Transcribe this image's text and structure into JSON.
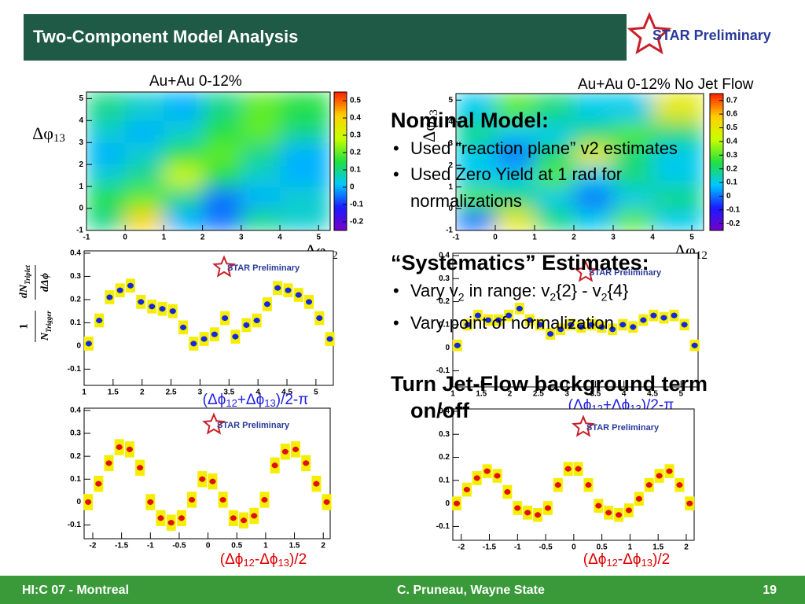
{
  "header": {
    "title": "Two-Component Model Analysis",
    "logo": "STAR Preliminary"
  },
  "chart_data": [
    {
      "type": "heatmap",
      "title": "Au+Au 0-12%",
      "xlabel": [
        "Δφ",
        "12"
      ],
      "ylabel": [
        "Δφ",
        "13"
      ],
      "xlim": [
        -1,
        5.3
      ],
      "ylim": [
        -1,
        5.3
      ],
      "xticks": [
        -1,
        0,
        1,
        2,
        3,
        4,
        5
      ],
      "yticks": [
        -1,
        0,
        1,
        2,
        3,
        4,
        5
      ],
      "xbins": [
        -1,
        0,
        1,
        2,
        3,
        4,
        5.3
      ],
      "ybins": [
        -1,
        0,
        1,
        2,
        3,
        4,
        5.3
      ],
      "z": [
        [
          0.1,
          0.4,
          0.0,
          -0.05,
          0.1,
          0.05
        ],
        [
          0.15,
          0.2,
          0.1,
          -0.05,
          0.0,
          0.05
        ],
        [
          0.05,
          0.1,
          0.3,
          0.15,
          0.05,
          0.0
        ],
        [
          0.0,
          0.05,
          0.15,
          0.2,
          0.1,
          0.0
        ],
        [
          0.05,
          0.0,
          0.05,
          0.15,
          0.2,
          0.1
        ],
        [
          0.1,
          0.05,
          0.0,
          0.1,
          0.2,
          0.15
        ]
      ],
      "zlim": [
        -0.25,
        0.55
      ],
      "zticks": [
        -0.2,
        -0.1,
        0,
        0.1,
        0.2,
        0.3,
        0.4,
        0.5
      ],
      "colormap": [
        "#7a00c8",
        "#1a1aff",
        "#00c8ff",
        "#20e040",
        "#c8ff00",
        "#ffd000",
        "#ff2000"
      ]
    },
    {
      "type": "heatmap",
      "title": "Au+Au 0-12% No Jet Flow",
      "xlabel": [
        "Δφ",
        "12"
      ],
      "ylabel": [
        "Δφ",
        "13"
      ],
      "xlim": [
        -1,
        5.3
      ],
      "ylim": [
        -1,
        5.3
      ],
      "xticks": [
        -1,
        0,
        1,
        2,
        3,
        4,
        5
      ],
      "yticks": [
        -1,
        0,
        1,
        2,
        3,
        4,
        5
      ],
      "xbins": [
        -1,
        0,
        1,
        2,
        3,
        4,
        5.3
      ],
      "ybins": [
        -1,
        0,
        1,
        2,
        3,
        4,
        5.3
      ],
      "z": [
        [
          0.0,
          0.5,
          0.2,
          0.1,
          0.3,
          0.1
        ],
        [
          0.3,
          0.2,
          0.1,
          0.0,
          0.1,
          0.2
        ],
        [
          0.1,
          0.1,
          0.3,
          0.1,
          0.2,
          0.1
        ],
        [
          0.1,
          0.0,
          0.2,
          0.5,
          0.2,
          0.1
        ],
        [
          0.2,
          0.1,
          0.1,
          0.2,
          0.3,
          0.2
        ],
        [
          0.1,
          0.3,
          0.2,
          0.1,
          0.1,
          0.5
        ]
      ],
      "zlim": [
        -0.25,
        0.75
      ],
      "zticks": [
        -0.2,
        -0.1,
        0,
        0.1,
        0.2,
        0.3,
        0.4,
        0.5,
        0.6,
        0.7
      ],
      "colormap": [
        "#7a00c8",
        "#1a1aff",
        "#00c8ff",
        "#20e040",
        "#c8ff00",
        "#ffd000",
        "#ff2000"
      ]
    },
    {
      "type": "scatter",
      "xlabel": [
        "(Δϕ",
        "12",
        "+Δϕ",
        "13",
        ")/2-π"
      ],
      "label_color": "#2020e0",
      "ylabel": {
        "left_num": "1",
        "left_den": [
          "N",
          "Trigger"
        ],
        "right_num": [
          "dN",
          "Triplet"
        ],
        "right_den": "dΔϕ"
      },
      "xlim": [
        1,
        5.3
      ],
      "ylim": [
        -0.17,
        0.41
      ],
      "xticks": [
        1,
        1.5,
        2,
        2.5,
        3,
        3.5,
        4,
        4.5,
        5
      ],
      "yticks": [
        -0.1,
        0,
        0.1,
        0.2,
        0.3,
        0.4
      ],
      "x": [
        1.08,
        1.26,
        1.44,
        1.62,
        1.8,
        1.98,
        2.17,
        2.35,
        2.53,
        2.71,
        2.89,
        3.07,
        3.25,
        3.43,
        3.61,
        3.8,
        3.98,
        4.16,
        4.34,
        4.52,
        4.7,
        4.88,
        5.06,
        5.24
      ],
      "values": [
        0.01,
        0.11,
        0.21,
        0.24,
        0.26,
        0.19,
        0.17,
        0.16,
        0.15,
        0.08,
        0.01,
        0.03,
        0.05,
        0.12,
        0.04,
        0.09,
        0.11,
        0.18,
        0.25,
        0.24,
        0.22,
        0.19,
        0.12,
        0.03
      ],
      "error": 0.012,
      "sys_error": 0.03,
      "color": "#1428e0",
      "sys_color": "#f5ee00"
    },
    {
      "type": "scatter",
      "xlabel": [
        "(Δϕ",
        "12",
        "+Δϕ",
        "13",
        ")/2-π"
      ],
      "label_color": "#2020e0",
      "xlim": [
        1,
        5.3
      ],
      "ylim": [
        -0.17,
        0.41
      ],
      "xticks": [
        1,
        1.5,
        2,
        2.5,
        3,
        3.5,
        4,
        4.5,
        5
      ],
      "yticks": [
        -0.1,
        0,
        0.1,
        0.2,
        0.3,
        0.4
      ],
      "x": [
        1.08,
        1.26,
        1.44,
        1.62,
        1.8,
        1.98,
        2.17,
        2.35,
        2.53,
        2.71,
        2.89,
        3.07,
        3.25,
        3.43,
        3.61,
        3.8,
        3.98,
        4.16,
        4.34,
        4.52,
        4.7,
        4.88,
        5.06,
        5.24
      ],
      "values": [
        0.01,
        0.1,
        0.14,
        0.12,
        0.12,
        0.14,
        0.17,
        0.12,
        0.1,
        0.06,
        0.08,
        0.1,
        0.09,
        0.1,
        0.09,
        0.08,
        0.1,
        0.09,
        0.12,
        0.14,
        0.13,
        0.14,
        0.1,
        0.01
      ],
      "error": 0.012,
      "sys_error": 0.025,
      "color": "#1428e0",
      "sys_color": "#f5ee00"
    },
    {
      "type": "scatter",
      "xlabel": [
        "(Δϕ",
        "12",
        "-Δϕ",
        "13",
        ")/2"
      ],
      "label_color": "#e00000",
      "xlim": [
        -2.15,
        2.12
      ],
      "ylim": [
        -0.16,
        0.41
      ],
      "xticks": [
        -2,
        -1.5,
        -1,
        -0.5,
        0,
        0.5,
        1,
        1.5,
        2
      ],
      "yticks": [
        -0.1,
        0,
        0.1,
        0.2,
        0.3,
        0.4
      ],
      "x": [
        -2.08,
        -1.9,
        -1.72,
        -1.54,
        -1.36,
        -1.18,
        -1,
        -0.82,
        -0.64,
        -0.46,
        -0.28,
        -0.1,
        0.08,
        0.26,
        0.44,
        0.62,
        0.8,
        0.98,
        1.16,
        1.34,
        1.52,
        1.7,
        1.88,
        2.06
      ],
      "values": [
        0.0,
        0.08,
        0.17,
        0.24,
        0.23,
        0.15,
        0.0,
        -0.07,
        -0.09,
        -0.07,
        0.01,
        0.1,
        0.09,
        0.01,
        -0.07,
        -0.08,
        -0.06,
        0.01,
        0.16,
        0.22,
        0.23,
        0.17,
        0.08,
        0.0
      ],
      "error": 0.012,
      "sys_error": 0.035,
      "color": "#e01010",
      "sys_color": "#f5ee00"
    },
    {
      "type": "scatter",
      "xlabel": [
        "(Δϕ",
        "12",
        "-Δϕ",
        "13",
        ")/2"
      ],
      "label_color": "#e00000",
      "xlim": [
        -2.15,
        2.14
      ],
      "ylim": [
        -0.16,
        0.41
      ],
      "xticks": [
        -2,
        -1.5,
        -1,
        -0.5,
        0,
        0.5,
        1,
        1.5,
        2
      ],
      "yticks": [
        -0.1,
        0,
        0.1,
        0.2,
        0.3,
        0.4
      ],
      "x": [
        -2.08,
        -1.9,
        -1.72,
        -1.54,
        -1.36,
        -1.18,
        -1,
        -0.82,
        -0.64,
        -0.46,
        -0.28,
        -0.1,
        0.08,
        0.26,
        0.44,
        0.62,
        0.8,
        0.98,
        1.16,
        1.34,
        1.52,
        1.7,
        1.88,
        2.06
      ],
      "values": [
        0.0,
        0.06,
        0.11,
        0.14,
        0.12,
        0.05,
        -0.02,
        -0.04,
        -0.05,
        -0.02,
        0.08,
        0.15,
        0.15,
        0.08,
        -0.01,
        -0.04,
        -0.05,
        -0.03,
        0.02,
        0.08,
        0.12,
        0.14,
        0.08,
        0.0
      ],
      "error": 0.012,
      "sys_error": 0.03,
      "color": "#e01010",
      "sys_color": "#f5ee00"
    }
  ],
  "text_panel": {
    "sections": [
      {
        "heading": "Nominal Model:",
        "bullets": [
          [
            "Used “reaction plane” v2 estimates"
          ],
          [
            "Used Zero Yield at 1 rad for normalizations"
          ]
        ]
      },
      {
        "heading": "“Systematics” Estimates:",
        "bullets": [
          [
            "Vary v",
            "2",
            " in range:  v",
            "2",
            "{2} - v",
            "2",
            "{4}"
          ],
          [
            "Vary point of normalization"
          ]
        ]
      },
      {
        "heading": "Turn Jet-Flow background term on/off",
        "bullets": []
      }
    ]
  },
  "footer": {
    "left": "HI:C 07 - Montreal",
    "center": "C. Pruneau, Wayne State",
    "page": "19"
  }
}
